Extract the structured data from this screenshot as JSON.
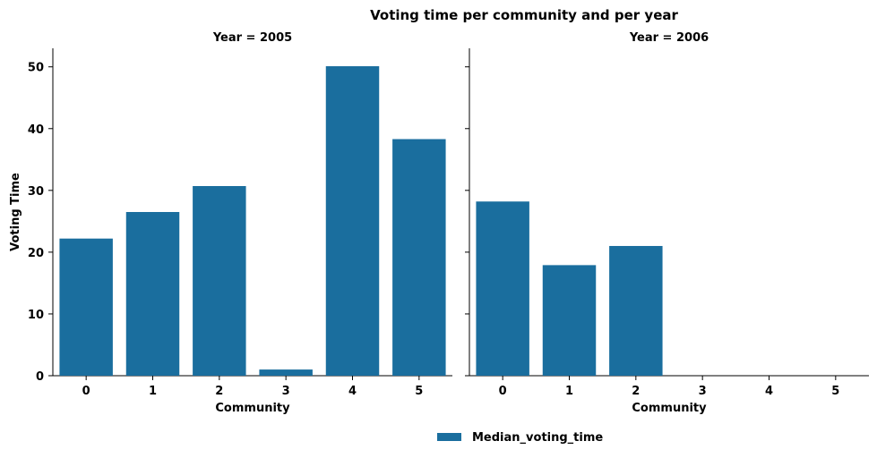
{
  "chart_data": {
    "type": "bar",
    "title": "Voting time per community and per year",
    "ylabel": "Voting Time",
    "xlabel": "Community",
    "ylim": [
      0,
      53
    ],
    "yticks": [
      0,
      10,
      20,
      30,
      40,
      50
    ],
    "categories": [
      "0",
      "1",
      "2",
      "3",
      "4",
      "5"
    ],
    "grid": false,
    "legend_position": "bottom-center",
    "bar_color": "#1a6e9e",
    "series": [
      {
        "name": "Median_voting_time"
      }
    ],
    "panels": [
      {
        "label": "Year = 2005",
        "values": [
          22.2,
          26.5,
          30.7,
          1.0,
          50.1,
          38.3
        ]
      },
      {
        "label": "Year = 2006",
        "values": [
          28.2,
          17.9,
          21.0,
          null,
          null,
          null
        ]
      }
    ]
  }
}
